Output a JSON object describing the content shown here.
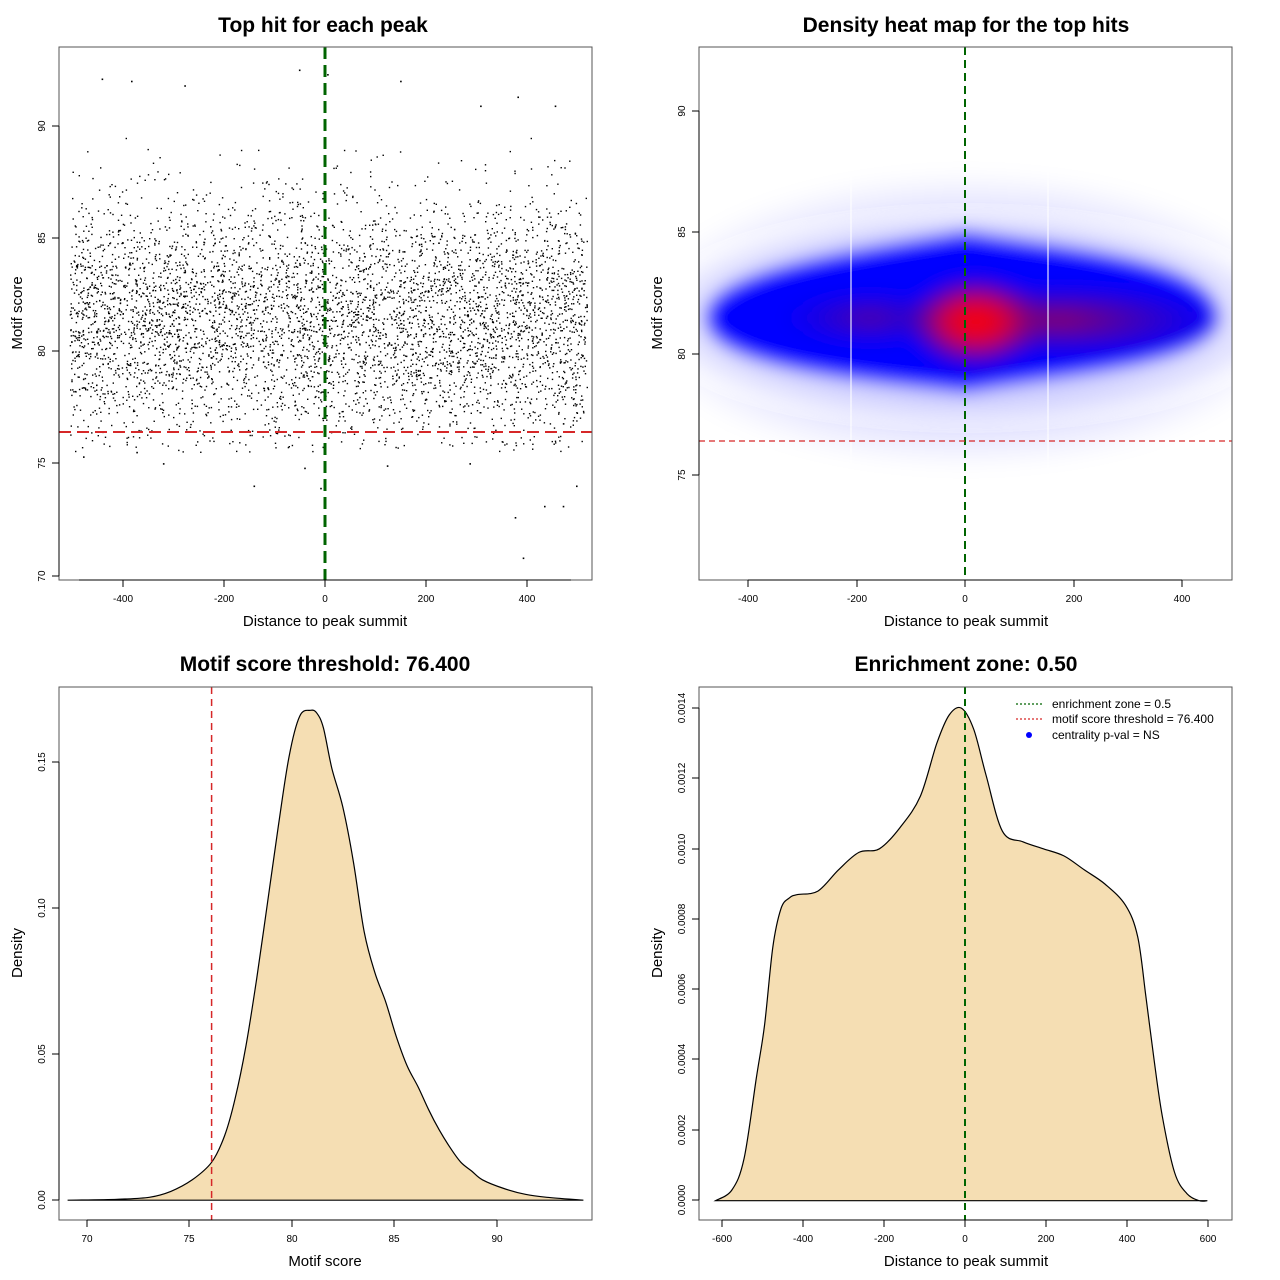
{
  "chart_data": [
    {
      "id": "scatter",
      "type": "scatter",
      "title": "Top hit for each peak",
      "xlabel": "Distance to peak summit",
      "ylabel": "Motif score",
      "xlim": [
        -500,
        500
      ],
      "ylim": [
        69.8,
        93.5
      ],
      "xticks": [
        -400,
        -200,
        0,
        200,
        400
      ],
      "yticks": [
        70,
        75,
        80,
        85,
        90
      ],
      "xtick_labels": [
        "-400",
        "-200",
        "0",
        "200",
        "400"
      ],
      "ytick_labels": [
        "70",
        "75",
        "80",
        "85",
        "90"
      ],
      "vline": {
        "x": 0,
        "color": "#006400",
        "style": "dashed"
      },
      "hline": {
        "y": 76.4,
        "color": "#d62728",
        "style": "dashed"
      },
      "points": {
        "x_range": [
          -480,
          490
        ],
        "y_mean": 81.5,
        "y_sd": 2.8,
        "n": 5200,
        "outliers": [
          {
            "x": -420,
            "y": 92.1
          },
          {
            "x": -365,
            "y": 92.0
          },
          {
            "x": -265,
            "y": 91.8
          },
          {
            "x": -50,
            "y": 92.5
          },
          {
            "x": 3,
            "y": 92.3
          },
          {
            "x": 140,
            "y": 92.0
          },
          {
            "x": 290,
            "y": 90.9
          },
          {
            "x": 360,
            "y": 91.3
          },
          {
            "x": 430,
            "y": 90.9
          },
          {
            "x": -455,
            "y": 75.3
          },
          {
            "x": -355,
            "y": 75.5
          },
          {
            "x": -305,
            "y": 75.0
          },
          {
            "x": -135,
            "y": 74.0
          },
          {
            "x": -40,
            "y": 74.8
          },
          {
            "x": -10,
            "y": 73.9
          },
          {
            "x": 115,
            "y": 74.9
          },
          {
            "x": 270,
            "y": 75.0
          },
          {
            "x": 355,
            "y": 72.6
          },
          {
            "x": 370,
            "y": 70.8
          },
          {
            "x": 410,
            "y": 73.1
          },
          {
            "x": 445,
            "y": 73.1
          },
          {
            "x": 470,
            "y": 74.0
          }
        ]
      }
    },
    {
      "id": "heatmap",
      "type": "heatmap",
      "title": "Density heat map for the top hits",
      "xlabel": "Distance to peak summit",
      "ylabel": "Motif score",
      "xlim": [
        -490,
        490
      ],
      "ylim": [
        70.8,
        92.6
      ],
      "xticks": [
        -400,
        -200,
        0,
        200,
        400
      ],
      "yticks": [
        75,
        80,
        85,
        90
      ],
      "xtick_labels": [
        "-400",
        "-200",
        "0",
        "200",
        "400"
      ],
      "ytick_labels": [
        "75",
        "80",
        "85",
        "90"
      ],
      "vline": {
        "x": 0,
        "color": "#006400",
        "style": "dashed"
      },
      "hline": {
        "y": 76.4,
        "color": "#d62728",
        "style": "dashed"
      },
      "density_peak": {
        "x": 20,
        "y": 81.2
      },
      "colors": [
        "#ffffff",
        "#0000ff",
        "#ff0000"
      ]
    },
    {
      "id": "score_density",
      "type": "area",
      "title": "Motif score threshold: 76.400",
      "xlabel": "Motif score",
      "ylabel": "Density",
      "xlim": [
        69.3,
        94.1
      ],
      "ylim": [
        -0.0068,
        0.176
      ],
      "xticks": [
        70,
        75,
        80,
        85,
        90
      ],
      "yticks": [
        0.0,
        0.05,
        0.1,
        0.15
      ],
      "xtick_labels": [
        "70",
        "75",
        "80",
        "85",
        "90"
      ],
      "ytick_labels": [
        "0.00",
        "0.05",
        "0.10",
        "0.15"
      ],
      "threshold": 76.4,
      "fill_color": "#f5deb3",
      "threshold_color": "#d62728",
      "x": [
        69.7,
        72,
        73.5,
        74.5,
        75.5,
        76.4,
        77,
        77.5,
        78,
        78.5,
        79,
        79.5,
        80,
        80.5,
        81,
        81.3,
        81.6,
        82,
        82.5,
        83,
        83.5,
        84,
        84.5,
        85,
        85.5,
        86,
        86.5,
        87,
        87.5,
        88,
        88.5,
        89,
        90,
        91,
        92,
        93.7
      ],
      "y": [
        0.0,
        0.0003,
        0.001,
        0.003,
        0.007,
        0.013,
        0.022,
        0.035,
        0.053,
        0.076,
        0.102,
        0.128,
        0.152,
        0.166,
        0.168,
        0.167,
        0.162,
        0.148,
        0.135,
        0.116,
        0.092,
        0.078,
        0.068,
        0.056,
        0.046,
        0.039,
        0.031,
        0.024,
        0.018,
        0.013,
        0.01,
        0.007,
        0.004,
        0.002,
        0.001,
        0.0
      ]
    },
    {
      "id": "dist_density",
      "type": "area",
      "title": "Enrichment zone: 0.50",
      "xlabel": "Distance to peak summit",
      "ylabel": "Density",
      "xlim": [
        -640,
        660
      ],
      "ylim": [
        -5.5e-05,
        0.00146
      ],
      "xticks": [
        -600,
        -400,
        -200,
        0,
        200,
        400,
        600
      ],
      "yticks": [
        0.0,
        0.0002,
        0.0004,
        0.0006,
        0.0008,
        0.001,
        0.0012,
        0.0014
      ],
      "xtick_labels": [
        "-600",
        "-400",
        "-200",
        "0",
        "200",
        "400",
        "600"
      ],
      "ytick_labels": [
        "0.0000",
        "0.0002",
        "0.0004",
        "0.0006",
        "0.0008",
        "0.0010",
        "0.0012",
        "0.0014"
      ],
      "fill_color": "#f5deb3",
      "vline": {
        "x": 0,
        "color": "#006400",
        "style": "dashed"
      },
      "x": [
        -600,
        -560,
        -530,
        -500,
        -480,
        -460,
        -440,
        -420,
        -400,
        -350,
        -300,
        -250,
        -200,
        -150,
        -100,
        -60,
        -30,
        0,
        30,
        60,
        100,
        150,
        200,
        250,
        300,
        350,
        400,
        430,
        450,
        470,
        490,
        520,
        550,
        580,
        600
      ],
      "y": [
        0.0,
        3e-05,
        0.00012,
        0.00035,
        0.0005,
        0.00072,
        0.00083,
        0.00086,
        0.00087,
        0.00088,
        0.00094,
        0.00099,
        0.001,
        0.00106,
        0.00115,
        0.0013,
        0.00138,
        0.0014,
        0.00134,
        0.00121,
        0.00105,
        0.00102,
        0.001,
        0.00098,
        0.00094,
        0.0009,
        0.00084,
        0.00075,
        0.00058,
        0.0004,
        0.00024,
        8e-05,
        2e-05,
        0.0,
        0.0
      ],
      "legend": {
        "position": "top-right",
        "entries": [
          {
            "label": "enrichment zone = 0.5",
            "color": "#006400",
            "kind": "dotted-line"
          },
          {
            "label": "motif score threshold = 76.400",
            "color": "#d62728",
            "kind": "dotted-line"
          },
          {
            "label": "centrality p-val = NS",
            "color": "#0000ff",
            "kind": "point"
          }
        ]
      }
    }
  ]
}
